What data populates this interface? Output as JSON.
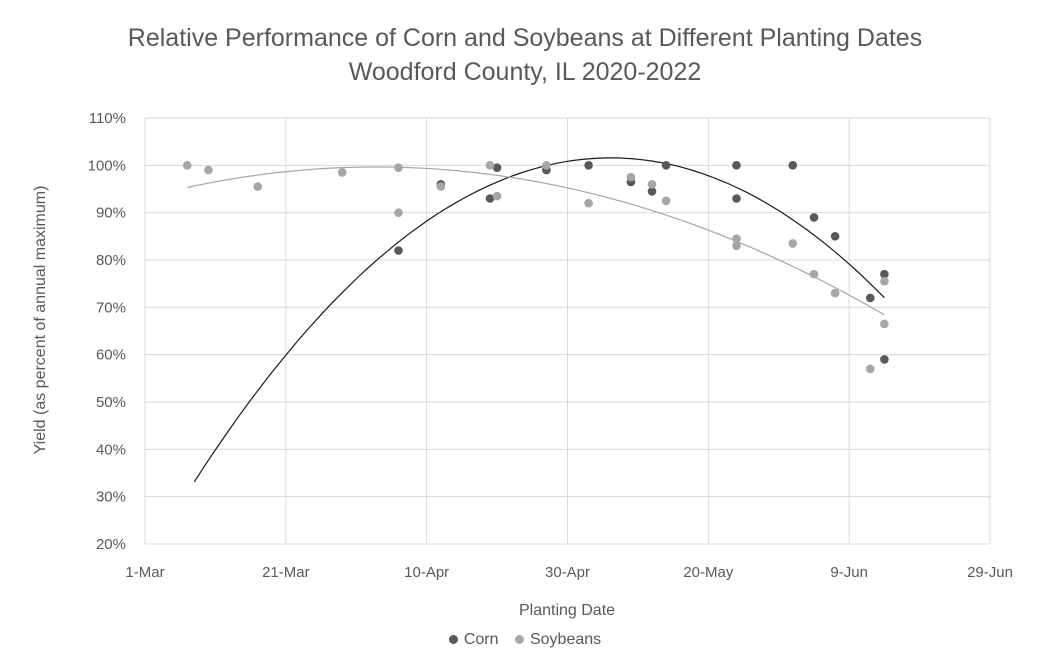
{
  "chart_data": {
    "type": "scatter",
    "title": "Relative Performance of Corn and Soybeans at Different Planting Dates",
    "subtitle": "Woodford County, IL 2020-2022",
    "xlabel": "Planting Date",
    "ylabel": "Yield (as percent of annual maximum)",
    "xlim": [
      "2020-03-01",
      "2020-06-29"
    ],
    "ylim": [
      20,
      110
    ],
    "x_ticks": [
      "1-Mar",
      "21-Mar",
      "10-Apr",
      "30-Apr",
      "20-May",
      "9-Jun",
      "29-Jun"
    ],
    "y_ticks": [
      "20%",
      "30%",
      "40%",
      "50%",
      "60%",
      "70%",
      "80%",
      "90%",
      "100%",
      "110%"
    ],
    "grid": true,
    "legend_position": "bottom",
    "series": [
      {
        "name": "Corn",
        "color": "#595959",
        "trendline": "polynomial",
        "trend_x_range": [
          "2020-03-08",
          "2020-06-14"
        ],
        "points": [
          {
            "x": "2020-04-06",
            "y": 82
          },
          {
            "x": "2020-04-12",
            "y": 96
          },
          {
            "x": "2020-04-19",
            "y": 93
          },
          {
            "x": "2020-04-20",
            "y": 99.5
          },
          {
            "x": "2020-04-27",
            "y": 99
          },
          {
            "x": "2020-05-03",
            "y": 100
          },
          {
            "x": "2020-05-09",
            "y": 96.5
          },
          {
            "x": "2020-05-12",
            "y": 94.5
          },
          {
            "x": "2020-05-14",
            "y": 100
          },
          {
            "x": "2020-05-24",
            "y": 100
          },
          {
            "x": "2020-05-24",
            "y": 93
          },
          {
            "x": "2020-06-01",
            "y": 100
          },
          {
            "x": "2020-06-04",
            "y": 89
          },
          {
            "x": "2020-06-07",
            "y": 85
          },
          {
            "x": "2020-06-12",
            "y": 72
          },
          {
            "x": "2020-06-14",
            "y": 77
          },
          {
            "x": "2020-06-14",
            "y": 59
          }
        ]
      },
      {
        "name": "Soybeans",
        "color": "#a6a6a6",
        "trendline": "polynomial",
        "trend_x_range": [
          "2020-03-07",
          "2020-06-14"
        ],
        "points": [
          {
            "x": "2020-03-07",
            "y": 100
          },
          {
            "x": "2020-03-10",
            "y": 99
          },
          {
            "x": "2020-03-17",
            "y": 95.5
          },
          {
            "x": "2020-03-29",
            "y": 98.5
          },
          {
            "x": "2020-04-06",
            "y": 99.5
          },
          {
            "x": "2020-04-06",
            "y": 90
          },
          {
            "x": "2020-04-12",
            "y": 95.5
          },
          {
            "x": "2020-04-19",
            "y": 100
          },
          {
            "x": "2020-04-20",
            "y": 93.5
          },
          {
            "x": "2020-04-27",
            "y": 100
          },
          {
            "x": "2020-05-03",
            "y": 92
          },
          {
            "x": "2020-05-09",
            "y": 97.5
          },
          {
            "x": "2020-05-12",
            "y": 96
          },
          {
            "x": "2020-05-14",
            "y": 92.5
          },
          {
            "x": "2020-05-24",
            "y": 84.5
          },
          {
            "x": "2020-05-24",
            "y": 83
          },
          {
            "x": "2020-06-01",
            "y": 83.5
          },
          {
            "x": "2020-06-04",
            "y": 77
          },
          {
            "x": "2020-06-07",
            "y": 73
          },
          {
            "x": "2020-06-12",
            "y": 57
          },
          {
            "x": "2020-06-14",
            "y": 75.5
          },
          {
            "x": "2020-06-14",
            "y": 66.5
          }
        ]
      }
    ]
  }
}
